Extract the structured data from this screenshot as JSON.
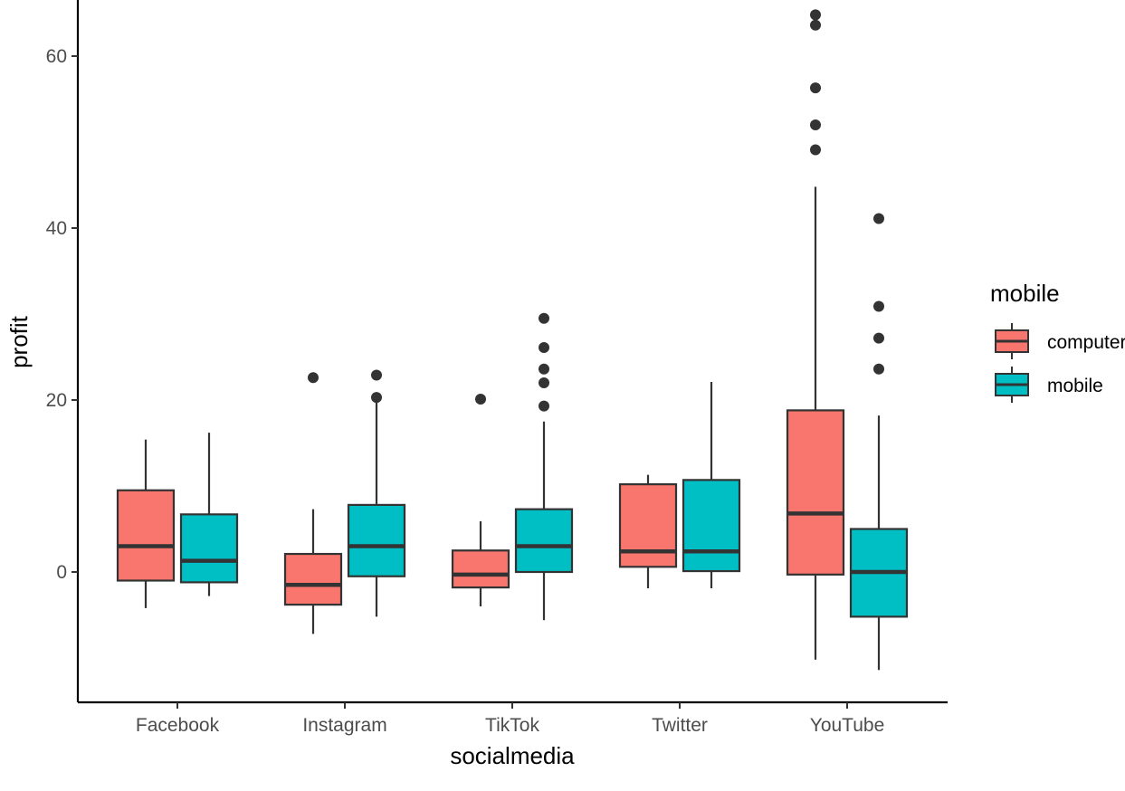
{
  "chart_data": {
    "type": "boxplot",
    "title": "",
    "xlabel": "socialmedia",
    "ylabel": "profit",
    "categories": [
      "Facebook",
      "Instagram",
      "TikTok",
      "Twitter",
      "YouTube"
    ],
    "yticks": [
      0,
      20,
      40,
      60
    ],
    "ylim": [
      -15,
      67
    ],
    "grid": false,
    "legend": {
      "title": "mobile",
      "placement": "right",
      "entries": [
        "computer",
        "mobile"
      ]
    },
    "colors": {
      "computer": "#F8766D",
      "mobile": "#00BFC4",
      "outline": "#333333"
    },
    "series": [
      {
        "name": "computer",
        "boxes": [
          {
            "category": "Facebook",
            "lower": -4.2,
            "q1": -1.0,
            "median": 3.0,
            "q3": 9.5,
            "upper": 15.4,
            "outliers": []
          },
          {
            "category": "Instagram",
            "lower": -7.2,
            "q1": -3.8,
            "median": -1.5,
            "q3": 2.1,
            "upper": 7.3,
            "outliers": [
              22.6
            ]
          },
          {
            "category": "TikTok",
            "lower": -4.0,
            "q1": -1.8,
            "median": -0.3,
            "q3": 2.5,
            "upper": 5.9,
            "outliers": [
              20.1
            ]
          },
          {
            "category": "Twitter",
            "lower": -1.9,
            "q1": 0.6,
            "median": 2.4,
            "q3": 10.2,
            "upper": 11.3,
            "outliers": []
          },
          {
            "category": "YouTube",
            "lower": -10.2,
            "q1": -0.3,
            "median": 6.8,
            "q3": 18.8,
            "upper": 44.8,
            "outliers": [
              49.1,
              52.0,
              56.3,
              63.6,
              64.8
            ]
          }
        ]
      },
      {
        "name": "mobile",
        "boxes": [
          {
            "category": "Facebook",
            "lower": -2.8,
            "q1": -1.2,
            "median": 1.3,
            "q3": 6.7,
            "upper": 16.2,
            "outliers": []
          },
          {
            "category": "Instagram",
            "lower": -5.2,
            "q1": -0.5,
            "median": 3.0,
            "q3": 7.8,
            "upper": 20.3,
            "outliers": [
              20.3,
              22.9
            ]
          },
          {
            "category": "TikTok",
            "lower": -5.6,
            "q1": 0.0,
            "median": 3.0,
            "q3": 7.3,
            "upper": 17.5,
            "outliers": [
              19.3,
              22.0,
              23.6,
              26.1,
              29.5
            ]
          },
          {
            "category": "Twitter",
            "lower": -1.9,
            "q1": 0.1,
            "median": 2.4,
            "q3": 10.7,
            "upper": 22.1,
            "outliers": []
          },
          {
            "category": "YouTube",
            "lower": -11.4,
            "q1": -5.2,
            "median": 0.0,
            "q3": 5.0,
            "upper": 18.2,
            "outliers": [
              23.6,
              27.2,
              30.9,
              41.1
            ]
          }
        ]
      }
    ]
  }
}
